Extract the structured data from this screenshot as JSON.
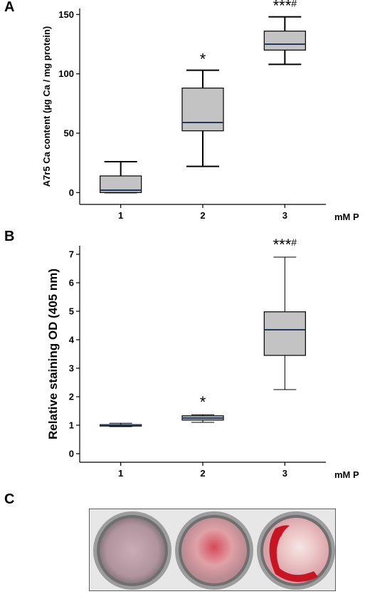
{
  "panels": {
    "a_letter": "A",
    "b_letter": "B",
    "c_letter": "C"
  },
  "chart_data": [
    {
      "type": "box",
      "panel": "A",
      "categories": [
        "1",
        "2",
        "3"
      ],
      "xlabel": "mM P",
      "ylabel": "A7r5 Ca content (µg Ca / mg protein)",
      "ylim": [
        -10,
        155
      ],
      "yticks": [
        0,
        50,
        100,
        150
      ],
      "boxes": [
        {
          "category": "1",
          "whisker_low": 0,
          "q1": 0,
          "median": 2,
          "q3": 14,
          "whisker_high": 26,
          "annotation": ""
        },
        {
          "category": "2",
          "whisker_low": 22,
          "q1": 52,
          "median": 59,
          "q3": 88,
          "whisker_high": 103,
          "annotation": "*"
        },
        {
          "category": "3",
          "whisker_low": 108,
          "q1": 120,
          "median": 125,
          "q3": 136,
          "whisker_high": 148,
          "annotation": "***#"
        }
      ],
      "box_color": "#c3c3c3",
      "median_color": "#1f3a5a"
    },
    {
      "type": "box",
      "panel": "B",
      "categories": [
        "1",
        "2",
        "3"
      ],
      "xlabel": "mM P",
      "ylabel": "Relative staining OD (405 nm)",
      "ylim": [
        -0.3,
        7.3
      ],
      "yticks": [
        0,
        1,
        2,
        3,
        4,
        5,
        6,
        7
      ],
      "boxes": [
        {
          "category": "1",
          "whisker_low": 0.95,
          "q1": 0.97,
          "median": 1.0,
          "q3": 1.02,
          "whisker_high": 1.07,
          "annotation": ""
        },
        {
          "category": "2",
          "whisker_low": 1.1,
          "q1": 1.18,
          "median": 1.25,
          "q3": 1.33,
          "whisker_high": 1.37,
          "annotation": "*"
        },
        {
          "category": "3",
          "whisker_low": 2.25,
          "q1": 3.45,
          "median": 4.35,
          "q3": 4.98,
          "whisker_high": 6.9,
          "annotation": "***#"
        }
      ],
      "box_color": "#c3c3c3",
      "median_color": "#1f3a5a"
    }
  ],
  "photo": {
    "wells": [
      {
        "stain": "#b89aa4"
      },
      {
        "stain": "#d97f88"
      },
      {
        "stain": "#c81524"
      }
    ]
  }
}
